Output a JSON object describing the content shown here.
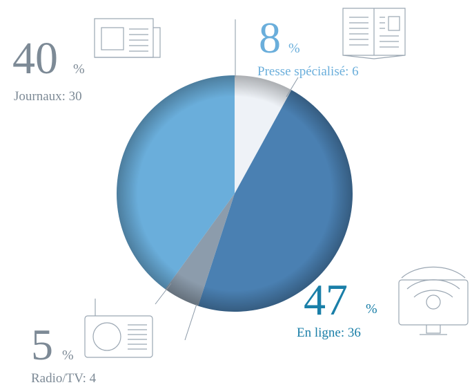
{
  "chart_data": {
    "type": "pie",
    "categories": [
      "Presse spécialisé: 6",
      "En ligne: 36",
      "Radio/TV: 4",
      "Journaux: 30"
    ],
    "values": [
      8,
      47,
      5,
      40
    ],
    "unit": "%",
    "colors": [
      "#eef2f7",
      "#4a80b2",
      "#8c9cac",
      "#6aaedb"
    ],
    "label_colors": [
      "#6aaedb",
      "#1a7fa8",
      "#7d8a96",
      "#7d8a96"
    ]
  }
}
